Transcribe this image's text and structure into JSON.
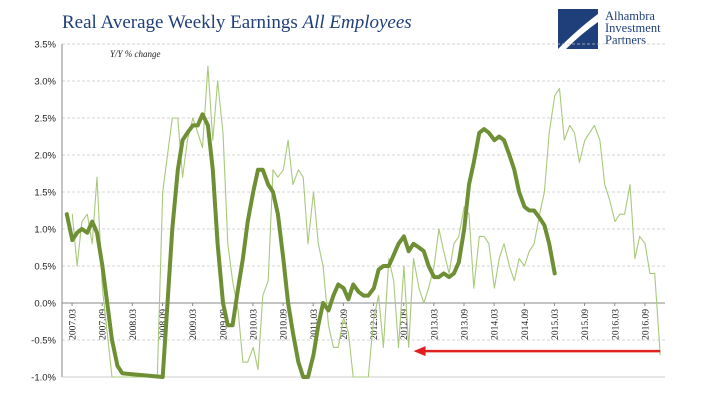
{
  "title": {
    "main": "Real Average Weekly Earnings",
    "italic": "All Employees"
  },
  "logo": {
    "line1": "Alhambra",
    "line2": "Investment",
    "line3": "Partners",
    "color": "#1f3f7a"
  },
  "chart_data": {
    "type": "line",
    "annotation": "Y/Y % change",
    "ylim": [
      -1.0,
      3.5
    ],
    "yticks": [
      "3.5%",
      "3.0%",
      "2.5%",
      "2.0%",
      "1.5%",
      "1.0%",
      "0.5%",
      "0.0%",
      "-0.5%",
      "-1.0%"
    ],
    "ytick_values": [
      3.5,
      3.0,
      2.5,
      2.0,
      1.5,
      1.0,
      0.5,
      0.0,
      -0.5,
      -1.0
    ],
    "xticks": [
      "2007.03",
      "2007.09",
      "2008.03",
      "2008.09",
      "2009.03",
      "2009.09",
      "2010.03",
      "2010.09",
      "2011.03",
      "2011.09",
      "2012.03",
      "2012.09",
      "2013.03",
      "2013.09",
      "2014.03",
      "2014.09",
      "2015.03",
      "2015.09",
      "2016.03",
      "2016.09"
    ],
    "grid": true,
    "colors": {
      "monthly": "#a9c97a",
      "average": "#6e8f33",
      "arrow": "#e02020"
    },
    "series": [
      {
        "style": "thin",
        "points": [
          [
            2007.17,
            1.2
          ],
          [
            2007.25,
            0.5
          ],
          [
            2007.33,
            1.1
          ],
          [
            2007.42,
            1.2
          ],
          [
            2007.5,
            0.8
          ],
          [
            2007.58,
            1.7
          ],
          [
            2007.67,
            0.2
          ],
          [
            2007.75,
            -0.4
          ],
          [
            2007.83,
            -1.0
          ],
          [
            2007.92,
            -1.0
          ],
          [
            2008.58,
            -1.0
          ],
          [
            2008.67,
            1.5
          ],
          [
            2008.75,
            2.0
          ],
          [
            2008.83,
            2.5
          ],
          [
            2008.92,
            2.5
          ],
          [
            2009.0,
            1.7
          ],
          [
            2009.08,
            2.2
          ],
          [
            2009.17,
            2.5
          ],
          [
            2009.25,
            2.3
          ],
          [
            2009.33,
            2.1
          ],
          [
            2009.42,
            3.2
          ],
          [
            2009.5,
            2.2
          ],
          [
            2009.58,
            3.0
          ],
          [
            2009.67,
            2.3
          ],
          [
            2009.75,
            0.8
          ],
          [
            2009.83,
            0.3
          ],
          [
            2009.92,
            -0.1
          ],
          [
            2010.0,
            -0.8
          ],
          [
            2010.08,
            -0.8
          ],
          [
            2010.17,
            -0.6
          ],
          [
            2010.25,
            -0.9
          ],
          [
            2010.33,
            0.1
          ],
          [
            2010.42,
            0.3
          ],
          [
            2010.5,
            1.8
          ],
          [
            2010.58,
            1.7
          ],
          [
            2010.67,
            1.8
          ],
          [
            2010.75,
            2.2
          ],
          [
            2010.83,
            1.6
          ],
          [
            2010.92,
            1.8
          ],
          [
            2011.0,
            1.7
          ],
          [
            2011.08,
            0.8
          ],
          [
            2011.17,
            1.5
          ],
          [
            2011.25,
            0.8
          ],
          [
            2011.33,
            0.5
          ],
          [
            2011.42,
            -0.3
          ],
          [
            2011.5,
            -0.6
          ],
          [
            2011.58,
            -0.6
          ],
          [
            2011.67,
            -0.2
          ],
          [
            2011.75,
            -0.4
          ],
          [
            2011.83,
            -1.0
          ],
          [
            2011.92,
            -1.0
          ],
          [
            2012.08,
            -1.0
          ],
          [
            2012.17,
            -0.2
          ],
          [
            2012.25,
            0.1
          ],
          [
            2012.33,
            -0.6
          ],
          [
            2012.42,
            0.6
          ],
          [
            2012.5,
            0.3
          ],
          [
            2012.58,
            -0.6
          ],
          [
            2012.67,
            0.5
          ],
          [
            2012.75,
            -0.6
          ],
          [
            2012.83,
            0.6
          ],
          [
            2012.92,
            0.2
          ],
          [
            2013.0,
            0.0
          ],
          [
            2013.08,
            0.2
          ],
          [
            2013.17,
            0.5
          ],
          [
            2013.25,
            1.0
          ],
          [
            2013.33,
            0.7
          ],
          [
            2013.42,
            0.4
          ],
          [
            2013.5,
            0.8
          ],
          [
            2013.58,
            0.9
          ],
          [
            2013.67,
            1.3
          ],
          [
            2013.75,
            1.2
          ],
          [
            2013.83,
            0.2
          ],
          [
            2013.92,
            0.9
          ],
          [
            2014.0,
            0.9
          ],
          [
            2014.08,
            0.8
          ],
          [
            2014.17,
            0.2
          ],
          [
            2014.25,
            0.6
          ],
          [
            2014.33,
            0.8
          ],
          [
            2014.42,
            0.5
          ],
          [
            2014.5,
            0.3
          ],
          [
            2014.58,
            0.6
          ],
          [
            2014.67,
            0.5
          ],
          [
            2014.75,
            0.7
          ],
          [
            2014.83,
            0.8
          ],
          [
            2014.92,
            1.2
          ],
          [
            2015.0,
            1.5
          ],
          [
            2015.08,
            2.3
          ],
          [
            2015.17,
            2.8
          ],
          [
            2015.25,
            2.9
          ],
          [
            2015.33,
            2.2
          ],
          [
            2015.42,
            2.4
          ],
          [
            2015.5,
            2.3
          ],
          [
            2015.58,
            1.9
          ],
          [
            2015.67,
            2.2
          ],
          [
            2015.75,
            2.3
          ],
          [
            2015.83,
            2.4
          ],
          [
            2015.92,
            2.2
          ],
          [
            2016.0,
            1.6
          ],
          [
            2016.08,
            1.4
          ],
          [
            2016.17,
            1.1
          ],
          [
            2016.25,
            1.2
          ],
          [
            2016.33,
            1.2
          ],
          [
            2016.42,
            1.6
          ],
          [
            2016.5,
            0.6
          ],
          [
            2016.58,
            0.9
          ],
          [
            2016.67,
            0.8
          ],
          [
            2016.75,
            0.4
          ],
          [
            2016.83,
            0.4
          ],
          [
            2016.92,
            -0.7
          ]
        ]
      },
      {
        "style": "thick",
        "points": [
          [
            2007.08,
            1.2
          ],
          [
            2007.17,
            0.85
          ],
          [
            2007.25,
            0.95
          ],
          [
            2007.33,
            1.0
          ],
          [
            2007.42,
            0.95
          ],
          [
            2007.5,
            1.1
          ],
          [
            2007.58,
            0.95
          ],
          [
            2007.67,
            0.5
          ],
          [
            2007.75,
            0.0
          ],
          [
            2007.83,
            -0.5
          ],
          [
            2007.92,
            -0.85
          ],
          [
            2008.0,
            -0.95
          ],
          [
            2008.67,
            -1.0
          ],
          [
            2008.75,
            0.0
          ],
          [
            2008.83,
            1.0
          ],
          [
            2008.92,
            1.8
          ],
          [
            2009.0,
            2.2
          ],
          [
            2009.08,
            2.3
          ],
          [
            2009.17,
            2.4
          ],
          [
            2009.25,
            2.4
          ],
          [
            2009.33,
            2.55
          ],
          [
            2009.42,
            2.4
          ],
          [
            2009.5,
            1.8
          ],
          [
            2009.58,
            0.8
          ],
          [
            2009.67,
            0.0
          ],
          [
            2009.75,
            -0.3
          ],
          [
            2009.83,
            -0.3
          ],
          [
            2009.92,
            0.2
          ],
          [
            2010.0,
            0.6
          ],
          [
            2010.08,
            1.1
          ],
          [
            2010.17,
            1.5
          ],
          [
            2010.25,
            1.8
          ],
          [
            2010.33,
            1.8
          ],
          [
            2010.42,
            1.6
          ],
          [
            2010.5,
            1.5
          ],
          [
            2010.58,
            1.2
          ],
          [
            2010.67,
            0.6
          ],
          [
            2010.75,
            0.0
          ],
          [
            2010.83,
            -0.4
          ],
          [
            2010.92,
            -0.8
          ],
          [
            2011.0,
            -1.0
          ],
          [
            2011.08,
            -1.0
          ],
          [
            2011.17,
            -0.7
          ],
          [
            2011.25,
            -0.3
          ],
          [
            2011.33,
            0.0
          ],
          [
            2011.42,
            -0.1
          ],
          [
            2011.5,
            0.1
          ],
          [
            2011.58,
            0.25
          ],
          [
            2011.67,
            0.2
          ],
          [
            2011.75,
            0.05
          ],
          [
            2011.83,
            0.25
          ],
          [
            2011.92,
            0.15
          ],
          [
            2012.0,
            0.1
          ],
          [
            2012.08,
            0.1
          ],
          [
            2012.17,
            0.2
          ],
          [
            2012.25,
            0.45
          ],
          [
            2012.33,
            0.5
          ],
          [
            2012.42,
            0.5
          ],
          [
            2012.5,
            0.65
          ],
          [
            2012.58,
            0.8
          ],
          [
            2012.67,
            0.9
          ],
          [
            2012.75,
            0.7
          ],
          [
            2012.83,
            0.8
          ],
          [
            2012.92,
            0.75
          ],
          [
            2013.0,
            0.7
          ],
          [
            2013.08,
            0.5
          ],
          [
            2013.17,
            0.35
          ],
          [
            2013.25,
            0.35
          ],
          [
            2013.33,
            0.4
          ],
          [
            2013.42,
            0.35
          ],
          [
            2013.5,
            0.4
          ],
          [
            2013.58,
            0.55
          ],
          [
            2013.67,
            1.0
          ],
          [
            2013.75,
            1.6
          ],
          [
            2013.83,
            1.9
          ],
          [
            2013.92,
            2.3
          ],
          [
            2014.0,
            2.35
          ],
          [
            2014.08,
            2.3
          ],
          [
            2014.17,
            2.2
          ],
          [
            2014.25,
            2.25
          ],
          [
            2014.33,
            2.2
          ],
          [
            2014.42,
            2.0
          ],
          [
            2014.5,
            1.8
          ],
          [
            2014.58,
            1.5
          ],
          [
            2014.67,
            1.3
          ],
          [
            2014.75,
            1.25
          ],
          [
            2014.83,
            1.25
          ],
          [
            2014.92,
            1.15
          ],
          [
            2015.0,
            1.05
          ],
          [
            2015.08,
            0.8
          ],
          [
            2015.17,
            0.4
          ]
        ]
      }
    ],
    "arrow": {
      "from_x": 2016.92,
      "to_x": 2012.83,
      "y": -0.65
    }
  }
}
